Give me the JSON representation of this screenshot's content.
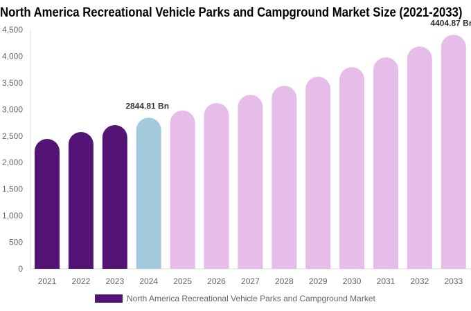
{
  "chart_data": {
    "type": "bar",
    "title": "North America Recreational Vehicle Parks and Campground Market Size (2021-2033)",
    "categories": [
      "2021",
      "2022",
      "2023",
      "2024",
      "2025",
      "2026",
      "2027",
      "2028",
      "2029",
      "2030",
      "2031",
      "2032",
      "2033"
    ],
    "series": [
      {
        "name": "North America Recreational Vehicle Parks and Campground Market",
        "values": [
          2445,
          2575,
          2705,
          2844.81,
          2980,
          3120,
          3275,
          3445,
          3615,
          3795,
          3980,
          4185,
          4404.87
        ]
      }
    ],
    "data_labels": {
      "2024": "2844.81 Bn",
      "2033": "4404.87 Bn"
    },
    "ylim": [
      0,
      4500
    ],
    "yticks": [
      0,
      500,
      1000,
      1500,
      2000,
      2500,
      3000,
      3500,
      4000,
      4500
    ],
    "ytick_labels": [
      "0",
      "500",
      "1,000",
      "1,500",
      "2,000",
      "2,500",
      "3,000",
      "3,500",
      "4,000",
      "4,500"
    ],
    "grid": false,
    "legend_position": "bottom",
    "colors": {
      "historical": "#541475",
      "base_year": "#a4cade",
      "forecast": "#e6bde8"
    },
    "color_groups": [
      "historical",
      "historical",
      "historical",
      "base_year",
      "forecast",
      "forecast",
      "forecast",
      "forecast",
      "forecast",
      "forecast",
      "forecast",
      "forecast",
      "forecast"
    ]
  }
}
